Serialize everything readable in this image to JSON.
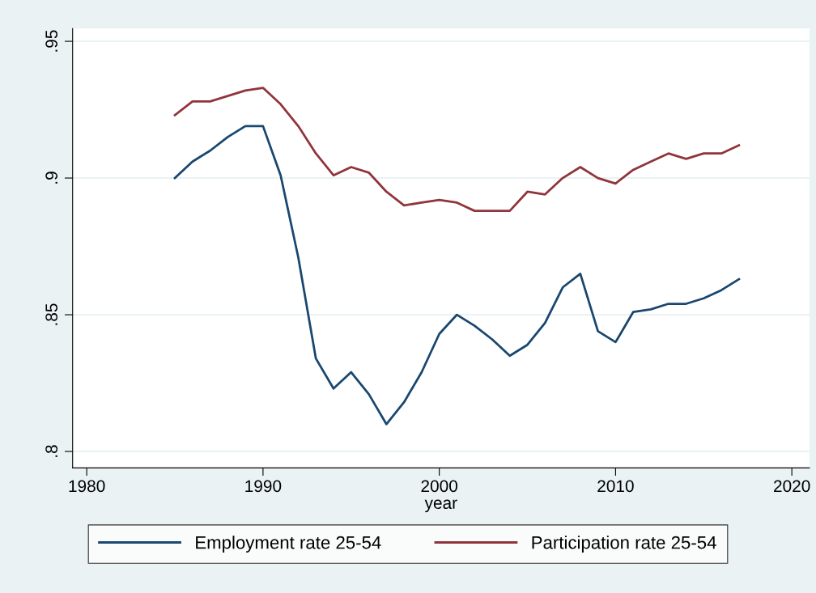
{
  "chart_data": {
    "type": "line",
    "xlabel": "year",
    "x": [
      1985,
      1986,
      1987,
      1988,
      1989,
      1990,
      1991,
      1992,
      1993,
      1994,
      1995,
      1996,
      1997,
      1998,
      1999,
      2000,
      2001,
      2002,
      2003,
      2004,
      2005,
      2006,
      2007,
      2008,
      2009,
      2010,
      2011,
      2012,
      2013,
      2014,
      2015,
      2016,
      2017
    ],
    "series": [
      {
        "name": "Employment rate 25-54",
        "color": "#1a476f",
        "values": [
          0.9,
          0.906,
          0.91,
          0.915,
          0.919,
          0.919,
          0.901,
          0.871,
          0.834,
          0.823,
          0.829,
          0.821,
          0.81,
          0.818,
          0.829,
          0.843,
          0.85,
          0.846,
          0.841,
          0.835,
          0.839,
          0.847,
          0.86,
          0.865,
          0.844,
          0.84,
          0.851,
          0.852,
          0.854,
          0.854,
          0.856,
          0.859,
          0.863
        ]
      },
      {
        "name": "Participation rate 25-54",
        "color": "#90353b",
        "values": [
          0.923,
          0.928,
          0.928,
          0.93,
          0.932,
          0.933,
          0.927,
          0.919,
          0.909,
          0.901,
          0.904,
          0.902,
          0.895,
          0.89,
          0.891,
          0.892,
          0.891,
          0.888,
          0.888,
          0.888,
          0.895,
          0.894,
          0.9,
          0.904,
          0.9,
          0.898,
          0.903,
          0.906,
          0.909,
          0.907,
          0.909,
          0.909,
          0.912
        ]
      }
    ],
    "xlim": [
      1979.2,
      2021.0
    ],
    "xticks": [
      1980,
      1990,
      2000,
      2010,
      2020
    ],
    "ylim": [
      0.794,
      0.9547
    ],
    "yticks": [
      {
        "value": 0.8,
        "label": ".8"
      },
      {
        "value": 0.85,
        "label": ".85"
      },
      {
        "value": 0.9,
        "label": ".9"
      },
      {
        "value": 0.95,
        "label": ".95"
      }
    ],
    "grid": "y",
    "legend": "bottom"
  }
}
